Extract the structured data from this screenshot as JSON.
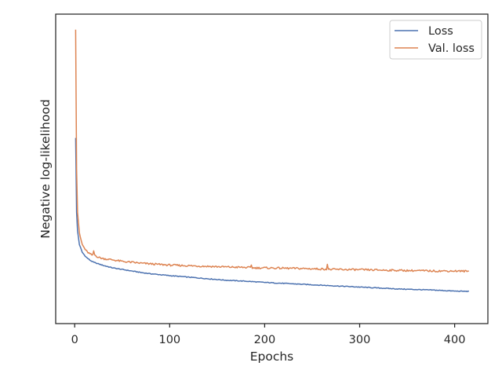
{
  "chart_data": {
    "type": "line",
    "title": "",
    "xlabel": "Epochs",
    "ylabel": "Negative log-likelihood",
    "xlim": [
      -20,
      435
    ],
    "x_ticks": [
      0,
      100,
      200,
      300,
      400
    ],
    "y_ticks_shown": false,
    "ylim": [
      0,
      1
    ],
    "grid": false,
    "legend_position": "top-right",
    "series": [
      {
        "name": "Loss",
        "color": "#4c72b0",
        "points": [
          [
            1,
            0.6
          ],
          [
            2,
            0.36
          ],
          [
            3,
            0.3
          ],
          [
            5,
            0.255
          ],
          [
            8,
            0.23
          ],
          [
            12,
            0.215
          ],
          [
            16,
            0.205
          ],
          [
            20,
            0.198
          ],
          [
            25,
            0.193
          ],
          [
            30,
            0.188
          ],
          [
            40,
            0.18
          ],
          [
            50,
            0.175
          ],
          [
            60,
            0.17
          ],
          [
            70,
            0.165
          ],
          [
            80,
            0.161
          ],
          [
            90,
            0.158
          ],
          [
            100,
            0.155
          ],
          [
            120,
            0.15
          ],
          [
            140,
            0.145
          ],
          [
            160,
            0.14
          ],
          [
            180,
            0.137
          ],
          [
            200,
            0.133
          ],
          [
            220,
            0.13
          ],
          [
            240,
            0.127
          ],
          [
            260,
            0.124
          ],
          [
            280,
            0.121
          ],
          [
            300,
            0.118
          ],
          [
            320,
            0.115
          ],
          [
            340,
            0.112
          ],
          [
            360,
            0.11
          ],
          [
            380,
            0.108
          ],
          [
            400,
            0.105
          ],
          [
            415,
            0.104
          ]
        ]
      },
      {
        "name": "Val. loss",
        "color": "#dd8452",
        "points": [
          [
            1,
            0.95
          ],
          [
            2,
            0.5
          ],
          [
            3,
            0.36
          ],
          [
            5,
            0.29
          ],
          [
            8,
            0.255
          ],
          [
            12,
            0.235
          ],
          [
            16,
            0.225
          ],
          [
            19,
            0.22
          ],
          [
            20,
            0.235
          ],
          [
            21,
            0.222
          ],
          [
            25,
            0.214
          ],
          [
            30,
            0.21
          ],
          [
            40,
            0.206
          ],
          [
            50,
            0.201
          ],
          [
            60,
            0.198
          ],
          [
            70,
            0.195
          ],
          [
            80,
            0.193
          ],
          [
            90,
            0.191
          ],
          [
            100,
            0.189
          ],
          [
            120,
            0.187
          ],
          [
            140,
            0.185
          ],
          [
            160,
            0.183
          ],
          [
            185,
            0.181
          ],
          [
            186,
            0.19
          ],
          [
            187,
            0.18
          ],
          [
            200,
            0.18
          ],
          [
            220,
            0.179
          ],
          [
            240,
            0.178
          ],
          [
            265,
            0.176
          ],
          [
            266,
            0.192
          ],
          [
            267,
            0.175
          ],
          [
            280,
            0.175
          ],
          [
            300,
            0.174
          ],
          [
            320,
            0.173
          ],
          [
            340,
            0.172
          ],
          [
            360,
            0.171
          ],
          [
            380,
            0.17
          ],
          [
            400,
            0.17
          ],
          [
            415,
            0.169
          ]
        ]
      }
    ]
  }
}
